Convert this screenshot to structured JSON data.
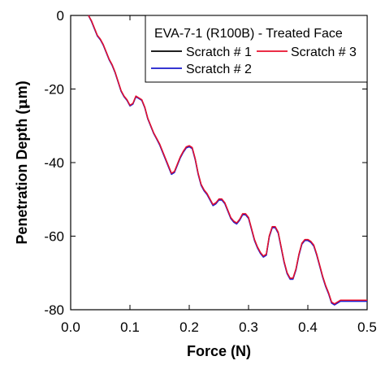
{
  "chart_data": {
    "type": "line",
    "title": "",
    "xlabel": "Force (N)",
    "ylabel_prefix": "Penetration Depth (",
    "ylabel_mu": "μ",
    "ylabel_suffix": "m)",
    "xlim": [
      0.0,
      0.5
    ],
    "ylim": [
      -80,
      0
    ],
    "xticks": [
      "0.0",
      "0.1",
      "0.2",
      "0.3",
      "0.4",
      "0.5"
    ],
    "yticks": [
      "0",
      "-20",
      "-40",
      "-60",
      "-80"
    ],
    "grid": false,
    "legend": {
      "title": "EVA-7-1 (R100B) - Treated Face",
      "placement": "top-right"
    },
    "x": [
      0.03,
      0.035,
      0.04,
      0.045,
      0.05,
      0.055,
      0.06,
      0.065,
      0.07,
      0.075,
      0.08,
      0.085,
      0.09,
      0.095,
      0.1,
      0.105,
      0.11,
      0.115,
      0.12,
      0.125,
      0.13,
      0.135,
      0.14,
      0.145,
      0.15,
      0.155,
      0.16,
      0.165,
      0.17,
      0.175,
      0.18,
      0.185,
      0.19,
      0.195,
      0.2,
      0.205,
      0.21,
      0.215,
      0.22,
      0.225,
      0.23,
      0.235,
      0.24,
      0.245,
      0.25,
      0.255,
      0.26,
      0.265,
      0.27,
      0.275,
      0.28,
      0.285,
      0.29,
      0.295,
      0.3,
      0.305,
      0.31,
      0.315,
      0.32,
      0.325,
      0.33,
      0.335,
      0.34,
      0.345,
      0.35,
      0.355,
      0.36,
      0.365,
      0.37,
      0.375,
      0.38,
      0.385,
      0.39,
      0.395,
      0.4,
      0.405,
      0.41,
      0.415,
      0.42,
      0.425,
      0.43,
      0.435,
      0.44,
      0.445,
      0.45,
      0.455,
      0.46,
      0.465,
      0.47,
      0.475,
      0.48,
      0.485,
      0.49,
      0.495,
      0.5
    ],
    "series": [
      {
        "name": "Scratch # 1",
        "color": "#000000",
        "values": [
          0,
          -1.5,
          -3.5,
          -5.5,
          -6.5,
          -8,
          -10,
          -12,
          -13.5,
          -15.5,
          -18,
          -20.5,
          -22,
          -23,
          -24.5,
          -24,
          -22,
          -22.5,
          -23,
          -25,
          -28,
          -30,
          -32,
          -33.5,
          -35,
          -37,
          -39,
          -41,
          -43,
          -42.5,
          -40.5,
          -38.5,
          -37,
          -35.8,
          -35.5,
          -36,
          -39,
          -43,
          -46,
          -47.5,
          -48.5,
          -50,
          -51.5,
          -51,
          -50,
          -50,
          -51,
          -53,
          -55,
          -56,
          -56.5,
          -55.5,
          -54,
          -54,
          -55,
          -58,
          -61,
          -63,
          -64.5,
          -65.5,
          -65,
          -60,
          -57.5,
          -57.5,
          -59,
          -63,
          -67,
          -70,
          -71.5,
          -71.5,
          -69,
          -65,
          -62,
          -61,
          -61,
          -61.5,
          -62.5,
          -65,
          -68,
          -71,
          -73.5,
          -75.5,
          -78,
          -78.5,
          -78,
          -77.5,
          -77.5,
          -77.5,
          -77.5,
          -77.5,
          -77.5,
          -77.5,
          -77.5,
          -77.5,
          -77.5
        ]
      },
      {
        "name": "Scratch # 2",
        "color": "#1a1acc",
        "values": [
          0,
          -1.6,
          -3.6,
          -5.6,
          -6.6,
          -8.1,
          -10.1,
          -12.1,
          -13.6,
          -15.6,
          -18.1,
          -20.6,
          -22.1,
          -23.1,
          -24.6,
          -24.1,
          -22.1,
          -22.6,
          -23.1,
          -25.1,
          -28.1,
          -30.1,
          -32.1,
          -33.6,
          -35.2,
          -37.2,
          -39.2,
          -41.2,
          -43.2,
          -42.7,
          -40.7,
          -38.7,
          -37.2,
          -36,
          -35.7,
          -36.2,
          -39.2,
          -43.2,
          -46.2,
          -47.7,
          -48.7,
          -50.2,
          -51.7,
          -51.2,
          -50.2,
          -50.2,
          -51.2,
          -53.2,
          -55.2,
          -56.2,
          -56.7,
          -55.7,
          -54.2,
          -54.2,
          -55.2,
          -58.2,
          -61.2,
          -63.2,
          -64.7,
          -65.7,
          -65.2,
          -60.2,
          -57.7,
          -57.7,
          -59.2,
          -63.2,
          -67.2,
          -70.2,
          -71.7,
          -71.7,
          -69.2,
          -65.2,
          -62.2,
          -61.2,
          -61.2,
          -61.7,
          -62.7,
          -65.2,
          -68.2,
          -71.2,
          -73.7,
          -75.7,
          -78.2,
          -78.7,
          -78.2,
          -77.7,
          -77.7,
          -77.7,
          -77.7,
          -77.7,
          -77.7,
          -77.7,
          -77.7,
          -77.7,
          -77.7
        ]
      },
      {
        "name": "Scratch # 3",
        "color": "#e8112d",
        "values": [
          0,
          -1.4,
          -3.4,
          -5.4,
          -6.4,
          -7.9,
          -9.9,
          -11.9,
          -13.4,
          -15.4,
          -17.9,
          -20.4,
          -21.9,
          -22.9,
          -24.4,
          -23.9,
          -21.9,
          -22.4,
          -22.9,
          -24.9,
          -27.9,
          -29.9,
          -31.9,
          -33.4,
          -34.9,
          -36.9,
          -38.9,
          -40.9,
          -42.9,
          -42.4,
          -40.4,
          -38.4,
          -36.9,
          -35.7,
          -35.4,
          -35.9,
          -38.9,
          -42.9,
          -45.9,
          -47.4,
          -48.4,
          -49.9,
          -51.4,
          -50.9,
          -49.9,
          -49.9,
          -50.9,
          -52.9,
          -54.9,
          -55.9,
          -56.4,
          -55.4,
          -53.9,
          -53.9,
          -54.9,
          -57.9,
          -60.9,
          -62.9,
          -64.4,
          -65.4,
          -64.9,
          -59.9,
          -57.4,
          -57.4,
          -58.9,
          -62.9,
          -66.9,
          -69.9,
          -71.4,
          -71.4,
          -68.9,
          -64.9,
          -61.9,
          -60.9,
          -60.9,
          -61.4,
          -62.4,
          -64.9,
          -67.9,
          -70.9,
          -73.4,
          -75.4,
          -77.9,
          -78.4,
          -77.9,
          -77.4,
          -77.4,
          -77.4,
          -77.4,
          -77.4,
          -77.4,
          -77.4,
          -77.4,
          -77.4,
          -77.4
        ]
      }
    ]
  }
}
